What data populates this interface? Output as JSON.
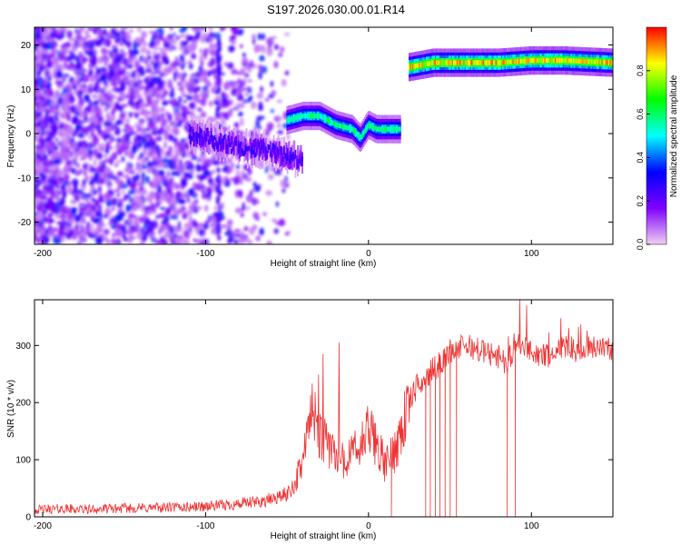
{
  "title": "S197.2026.030.00.01.R14",
  "chart_data": [
    {
      "type": "heatmap",
      "xlabel": "Height of straight line (km)",
      "ylabel": "Frequency (Hz)",
      "xlim": [
        -205,
        150
      ],
      "ylim": [
        -25,
        24
      ],
      "x_ticks": [
        -200,
        -100,
        0,
        100
      ],
      "x_tick_labels": [
        "-200",
        "-100",
        "0",
        "100"
      ],
      "y_ticks": [
        -20,
        -10,
        0,
        10,
        20
      ],
      "y_tick_labels": [
        "-20",
        "-10",
        "0",
        "10",
        "20"
      ],
      "colorbar": {
        "label": "Normalized spectral amplitude",
        "range": [
          0,
          1
        ],
        "ticks": [
          0,
          0.2,
          0.4,
          0.6,
          0.8
        ],
        "tick_labels": [
          "0.0",
          "0.2",
          "0.4",
          "0.6",
          "0.8"
        ],
        "colormap": [
          "#f0d0f0",
          "#8000ff",
          "#0000ff",
          "#00ffff",
          "#00ff00",
          "#ffff00",
          "#ff0000"
        ]
      },
      "ridge": {
        "segments": [
          {
            "x": [
              -110,
              -100,
              -90,
              -80,
              -70,
              -60,
              -50,
              -40
            ],
            "y": [
              0,
              -1,
              -2,
              -3,
              -3.5,
              -4,
              -5,
              -6
            ]
          },
          {
            "x": [
              -50,
              -40,
              -30,
              -20,
              -10,
              -5,
              0,
              5,
              10,
              20
            ],
            "y": [
              3,
              4,
              4,
              2,
              1,
              -1,
              2,
              1,
              1,
              1
            ]
          },
          {
            "x": [
              25,
              40,
              60,
              80,
              100,
              120,
              150
            ],
            "y": [
              15,
              16,
              16,
              16,
              16.5,
              16.5,
              16
            ]
          }
        ],
        "peak_amplitude": [
          0.3,
          0.65,
          0.95
        ]
      },
      "noise_region_x": [
        -205,
        -45
      ],
      "grid": false
    },
    {
      "type": "line",
      "xlabel": "Height of straight line (km)",
      "ylabel": "SNR (10 * v/v)",
      "xlim": [
        -205,
        150
      ],
      "ylim": [
        0,
        380
      ],
      "x_ticks": [
        -200,
        -100,
        0,
        100
      ],
      "x_tick_labels": [
        "-200",
        "-100",
        "0",
        "100"
      ],
      "y_ticks": [
        0,
        100,
        200,
        300
      ],
      "y_tick_labels": [
        "0",
        "100",
        "200",
        "300"
      ],
      "line_color": "#ee3333",
      "series": [
        {
          "x": [
            -205,
            -190,
            -170,
            -150,
            -130,
            -110,
            -90,
            -70,
            -60,
            -50,
            -45,
            -40,
            -35,
            -30,
            -25,
            -20,
            -15,
            -10,
            -5,
            0,
            5,
            10,
            15,
            20,
            25,
            30,
            35,
            40,
            45,
            50,
            60,
            70,
            80,
            85,
            90,
            100,
            110,
            120,
            130,
            140,
            150
          ],
          "y": [
            12,
            14,
            13,
            15,
            16,
            17,
            20,
            25,
            30,
            40,
            60,
            100,
            180,
            140,
            120,
            110,
            100,
            110,
            120,
            150,
            130,
            90,
            110,
            150,
            200,
            230,
            240,
            260,
            270,
            290,
            300,
            290,
            280,
            270,
            300,
            290,
            280,
            300,
            290,
            300,
            295
          ]
        }
      ],
      "dropouts_x": [
        14,
        35,
        38,
        41,
        44,
        47,
        50,
        54,
        85,
        90
      ],
      "spikes": [
        {
          "x": -28,
          "y": 285
        },
        {
          "x": -18,
          "y": 305
        },
        {
          "x": 93,
          "y": 380
        },
        {
          "x": 97,
          "y": 370
        }
      ],
      "grid": false
    }
  ]
}
